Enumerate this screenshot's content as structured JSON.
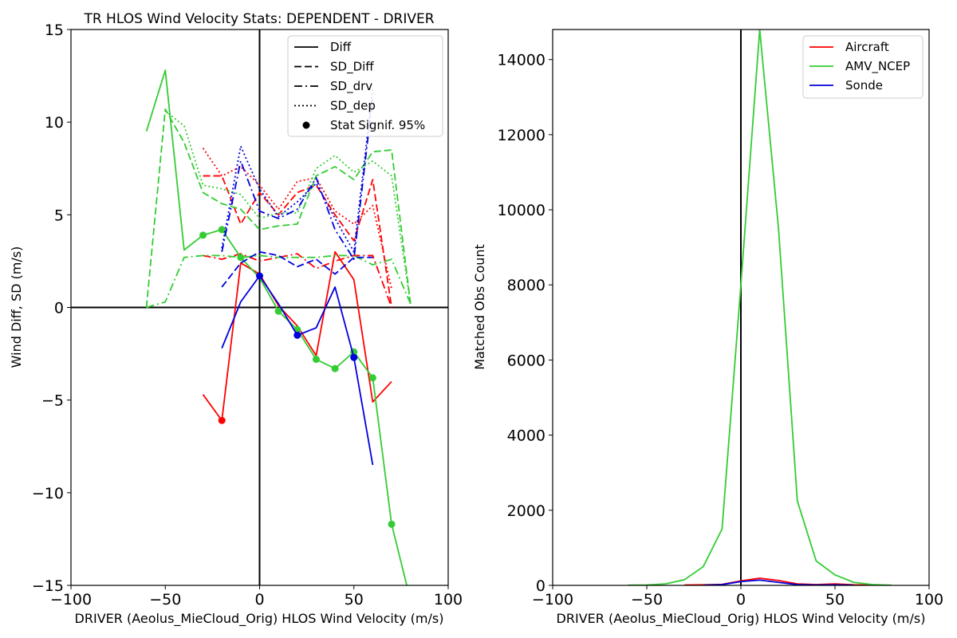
{
  "chart_data": [
    {
      "type": "line",
      "title": "TR HLOS Wind Velocity Stats: DEPENDENT - DRIVER",
      "xlabel": "DRIVER (Aeolus_MieCloud_Orig) HLOS Wind Velocity (m/s)",
      "ylabel": "Wind Diff, SD (m/s)",
      "xlim": [
        -100,
        100
      ],
      "ylim": [
        -15,
        15
      ],
      "xticks": [
        -100,
        -50,
        0,
        50,
        100
      ],
      "xtick_labels": [
        "−100",
        "−50",
        "0",
        "50",
        "100"
      ],
      "yticks": [
        -15,
        -10,
        -5,
        0,
        5,
        10,
        15
      ],
      "ytick_labels": [
        "−15",
        "−10",
        "−5",
        "0",
        "5",
        "10",
        "15"
      ],
      "grid": false,
      "legend_position": "top-right",
      "legend": [
        {
          "label": "Diff",
          "style": "solid"
        },
        {
          "label": "SD_Diff",
          "style": "dashed"
        },
        {
          "label": "SD_drv",
          "style": "dashdot"
        },
        {
          "label": "SD_dep",
          "style": "dotted"
        },
        {
          "label": "Stat Signif. 95%",
          "style": "marker"
        }
      ],
      "series": [
        {
          "color": "#ff0000",
          "x": [
            -30,
            -20,
            -10,
            0,
            10,
            20,
            30,
            40,
            50,
            60,
            70
          ],
          "diff": [
            -4.7,
            -6.1,
            2.4,
            1.8,
            0.1,
            -1.0,
            -2.6,
            3.0,
            1.5,
            -5.1,
            -4.0
          ],
          "sd_diff": [
            7.1,
            7.1,
            4.5,
            6.2,
            5.0,
            6.2,
            6.6,
            5.0,
            3.6,
            6.9,
            0.0
          ],
          "sd_drv": [
            2.8,
            2.6,
            2.9,
            2.5,
            2.7,
            2.9,
            2.1,
            2.5,
            2.8,
            2.8,
            0.0
          ],
          "sd_dep": [
            8.6,
            7.1,
            7.6,
            6.6,
            5.3,
            6.8,
            7.0,
            5.2,
            4.5,
            5.5,
            1.0
          ],
          "signif_x": [
            -20
          ]
        },
        {
          "color": "#33cc33",
          "x": [
            -60,
            -50,
            -40,
            -30,
            -20,
            -10,
            0,
            10,
            20,
            30,
            40,
            50,
            60,
            70,
            80
          ],
          "diff": [
            9.5,
            12.8,
            3.1,
            3.9,
            4.2,
            2.7,
            1.6,
            -0.2,
            -1.2,
            -2.8,
            -3.3,
            -2.4,
            -3.8,
            -11.7,
            -15.8
          ],
          "sd_diff": [
            0.0,
            10.7,
            8.9,
            6.2,
            5.6,
            5.3,
            4.2,
            4.4,
            4.5,
            7.1,
            7.6,
            6.9,
            8.4,
            8.5,
            0.2
          ],
          "sd_drv": [
            0.0,
            0.3,
            2.7,
            2.8,
            2.8,
            2.7,
            2.8,
            2.7,
            2.7,
            2.7,
            2.8,
            2.8,
            2.3,
            2.6,
            0.2
          ],
          "sd_dep": [
            null,
            10.6,
            9.8,
            6.6,
            6.4,
            6.1,
            4.8,
            5.1,
            5.1,
            7.5,
            8.2,
            7.3,
            7.9,
            7.1,
            0.2
          ],
          "signif_x": [
            -30,
            -20,
            -10,
            10,
            20,
            30,
            40,
            50,
            60,
            70
          ]
        },
        {
          "color": "#0000dd",
          "x": [
            -20,
            -10,
            0,
            10,
            20,
            30,
            40,
            50,
            60
          ],
          "diff": [
            -2.2,
            0.3,
            1.7,
            0.2,
            -1.5,
            -1.1,
            1.1,
            -2.7,
            -8.5
          ],
          "sd_diff": [
            1.1,
            2.4,
            3.0,
            2.8,
            2.2,
            2.6,
            1.8,
            2.7,
            2.7
          ],
          "sd_drv": [
            3.0,
            7.9,
            5.2,
            4.8,
            5.3,
            7.0,
            4.2,
            2.6,
            11.4
          ],
          "sd_dep": [
            3.2,
            8.7,
            6.4,
            4.9,
            5.7,
            6.7,
            4.8,
            3.0,
            11.8
          ],
          "signif_x": [
            0,
            20,
            50
          ]
        }
      ]
    },
    {
      "type": "line",
      "title": "",
      "xlabel": "DRIVER (Aeolus_MieCloud_Orig) HLOS Wind Velocity (m/s)",
      "ylabel": "Matched Obs Count",
      "xlim": [
        -100,
        100
      ],
      "ylim": [
        0,
        14800
      ],
      "xticks": [
        -100,
        -50,
        0,
        50,
        100
      ],
      "xtick_labels": [
        "−100",
        "−50",
        "0",
        "50",
        "100"
      ],
      "yticks": [
        0,
        2000,
        4000,
        6000,
        8000,
        10000,
        12000,
        14000
      ],
      "ytick_labels": [
        "0",
        "2000",
        "4000",
        "6000",
        "8000",
        "10000",
        "12000",
        "14000"
      ],
      "grid": false,
      "legend_position": "top-right",
      "series": [
        {
          "name": "Aircraft",
          "color": "#ff0000",
          "x": [
            -30,
            -20,
            -10,
            0,
            10,
            20,
            30,
            40,
            50,
            60,
            70
          ],
          "values": [
            10,
            15,
            25,
            120,
            190,
            130,
            40,
            20,
            40,
            15,
            5
          ]
        },
        {
          "name": "AMV_NCEP",
          "color": "#33cc33",
          "x": [
            -60,
            -50,
            -40,
            -30,
            -20,
            -10,
            0,
            10,
            20,
            30,
            40,
            50,
            60,
            70,
            80
          ],
          "values": [
            5,
            10,
            40,
            150,
            500,
            1500,
            8000,
            14800,
            9500,
            2250,
            650,
            280,
            80,
            20,
            5
          ]
        },
        {
          "name": "Sonde",
          "color": "#0000dd",
          "x": [
            -20,
            -10,
            0,
            10,
            20,
            30,
            40,
            50,
            60
          ],
          "values": [
            5,
            20,
            100,
            140,
            80,
            20,
            10,
            15,
            5
          ]
        }
      ]
    }
  ]
}
